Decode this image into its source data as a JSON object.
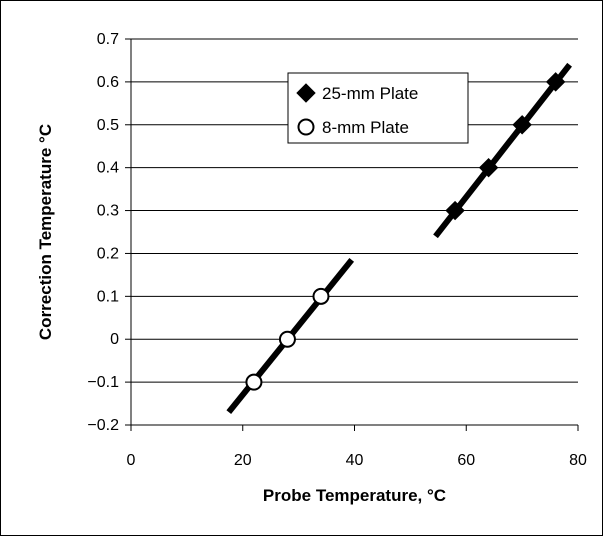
{
  "chart_data": {
    "type": "scatter",
    "title": "",
    "xlabel": "Probe Temperature, °C",
    "ylabel": "Correction Temperature °C",
    "xlim": [
      0,
      80
    ],
    "ylim": [
      -0.2,
      0.7
    ],
    "xticks": [
      0,
      20,
      40,
      60,
      80
    ],
    "yticks": [
      -0.2,
      -0.1,
      0,
      0.1,
      0.2,
      0.3,
      0.4,
      0.5,
      0.6,
      0.7
    ],
    "xtick_labels": [
      "0",
      "20",
      "40",
      "60",
      "80"
    ],
    "ytick_labels": [
      "−0.2",
      "−0.1",
      "0",
      "0.1",
      "0.2",
      "0.3",
      "0.4",
      "0.5",
      "0.6",
      "0.7"
    ],
    "grid": "horizontal",
    "legend_position": "top-center",
    "series": [
      {
        "name": "25-mm Plate",
        "marker": "filled-diamond",
        "color": "#000000",
        "x": [
          58,
          64,
          70,
          76
        ],
        "y": [
          0.3,
          0.4,
          0.5,
          0.6
        ],
        "fit_line": {
          "x": [
            54.5,
            78.5
          ],
          "y": [
            0.24,
            0.64
          ]
        }
      },
      {
        "name": "8-mm Plate",
        "marker": "open-circle",
        "color": "#000000",
        "x": [
          22,
          28,
          34
        ],
        "y": [
          -0.1,
          0,
          0.1
        ],
        "fit_line": {
          "x": [
            17.5,
            39.5
          ],
          "y": [
            -0.17,
            0.185
          ]
        }
      }
    ]
  }
}
